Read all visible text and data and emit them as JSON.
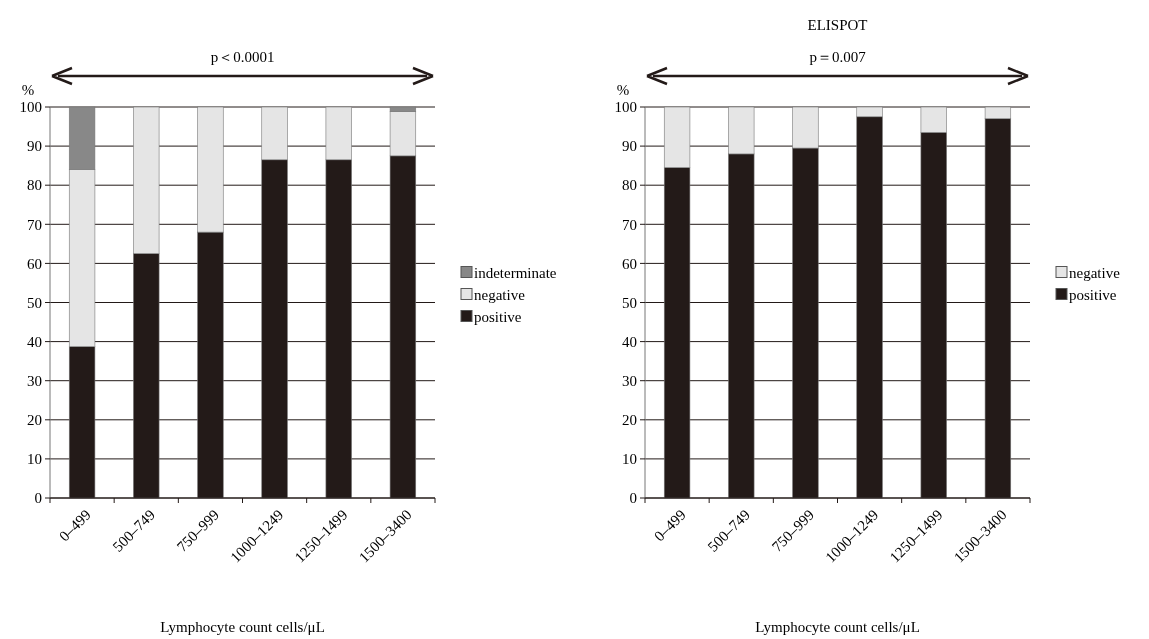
{
  "chart_data": [
    {
      "type": "bar",
      "stacked": true,
      "ylabel": "%",
      "xlabel": "Lymphocyte count cells/μL",
      "annotations": [
        "p＜0.0001"
      ],
      "categories": [
        "0–499",
        "500–749",
        "750–999",
        "1000–1249",
        "1250–1499",
        "1500–3400"
      ],
      "ylim": [
        0,
        100
      ],
      "yticks": [
        0,
        10,
        20,
        30,
        40,
        50,
        60,
        70,
        80,
        90,
        100
      ],
      "grid": "y",
      "legend": "right",
      "series": [
        {
          "name": "positive",
          "color": "#231a18",
          "values": [
            38.7,
            62.5,
            68,
            86.5,
            86.5,
            87.5
          ]
        },
        {
          "name": "negative",
          "color": "#e5e5e5",
          "values": [
            45.3,
            37.5,
            32,
            13.5,
            13.5,
            11.3
          ]
        },
        {
          "name": "indeterminate",
          "color": "#888888",
          "values": [
            16,
            0,
            0,
            0,
            0,
            1.2
          ]
        }
      ]
    },
    {
      "type": "bar",
      "stacked": true,
      "title": "ELISPOT",
      "ylabel": "%",
      "xlabel": "Lymphocyte count cells/μL",
      "annotations": [
        "p＝0.007"
      ],
      "categories": [
        "0–499",
        "500–749",
        "750–999",
        "1000–1249",
        "1250–1499",
        "1500–3400"
      ],
      "ylim": [
        0,
        100
      ],
      "yticks": [
        0,
        10,
        20,
        30,
        40,
        50,
        60,
        70,
        80,
        90,
        100
      ],
      "grid": "y",
      "legend": "right",
      "series": [
        {
          "name": "positive",
          "color": "#231a18",
          "values": [
            84.5,
            88,
            89.5,
            97.5,
            93.5,
            97
          ]
        },
        {
          "name": "negative",
          "color": "#e5e5e5",
          "values": [
            15.5,
            12,
            10.5,
            2.5,
            6.5,
            3
          ]
        }
      ]
    }
  ]
}
